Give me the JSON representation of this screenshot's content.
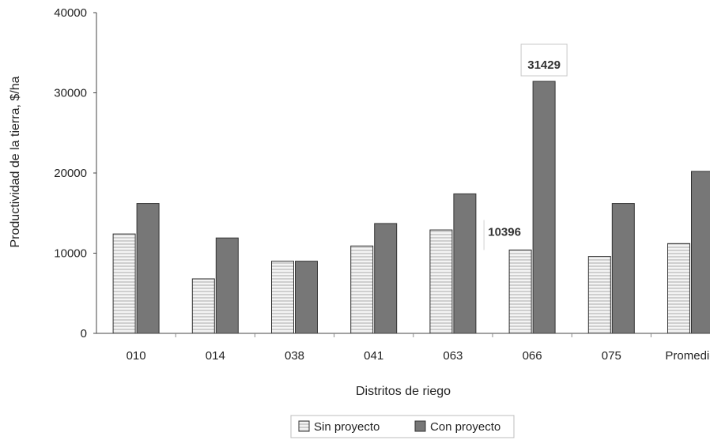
{
  "chart_data": {
    "type": "bar",
    "xlabel": "Distritos de riego",
    "ylabel": "Productividad de la tierra, $/ha",
    "ylim": [
      0,
      40000
    ],
    "yticks": [
      0,
      10000,
      20000,
      30000,
      40000
    ],
    "categories": [
      "010",
      "014",
      "038",
      "041",
      "063",
      "066",
      "075",
      "Promedio"
    ],
    "series": [
      {
        "name": "Sin proyecto",
        "values": [
          12400,
          6800,
          9000,
          10900,
          12900,
          10396,
          9600,
          11200
        ],
        "color": "#e6e6e6",
        "pattern": "horizontal-stripes"
      },
      {
        "name": "Con proyecto",
        "values": [
          16200,
          11900,
          9000,
          13700,
          17400,
          31429,
          16200,
          20200
        ],
        "color": "#777777"
      }
    ],
    "data_labels": [
      {
        "series": 0,
        "category": "066",
        "text": "10396"
      },
      {
        "series": 1,
        "category": "066",
        "text": "31429"
      }
    ],
    "grid": false,
    "legend_position": "bottom-center"
  }
}
